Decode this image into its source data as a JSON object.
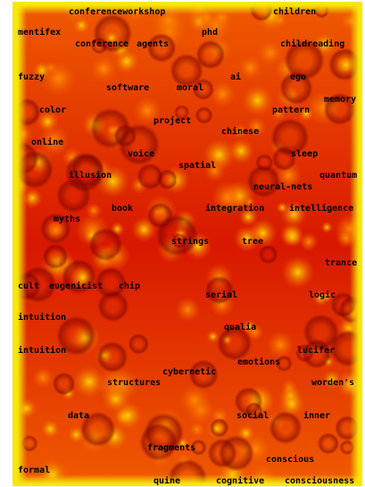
{
  "colors": {
    "background": "#ffffff",
    "frame": "#f6e60a",
    "low": "#ffd200",
    "mid": "#f05a00",
    "high": "#d81800",
    "peak": "#7a0000",
    "label": "#000000"
  },
  "terms": [
    "conferenceworkshop",
    "children",
    "mentifex",
    "phd",
    "conference",
    "agents",
    "childreading",
    "fuzzy",
    "ai",
    "ego",
    "software",
    "moral",
    "memory",
    "color",
    "pattern",
    "project",
    "chinese",
    "online",
    "voice",
    "sleep",
    "spatial",
    "illusion",
    "quantum",
    "neural-nets",
    "book",
    "integration",
    "intelligence",
    "myths",
    "strings",
    "tree",
    "trance",
    "cult",
    "eugenicist",
    "chip",
    "serial",
    "logic",
    "intuition",
    "qualia",
    "intuition",
    "lucifer",
    "emotions",
    "cybernetic",
    "structures",
    "worden's",
    "data",
    "social",
    "inner",
    "fragments",
    "conscious",
    "formal",
    "quine",
    "cognitive",
    "consciousness"
  ]
}
